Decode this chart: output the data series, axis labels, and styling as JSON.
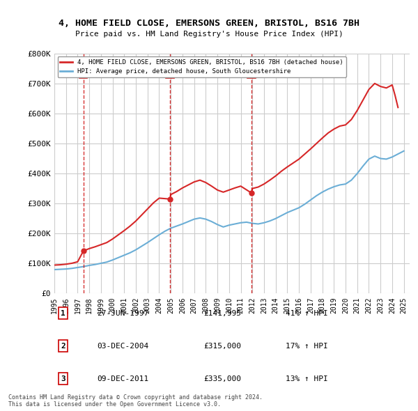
{
  "title1": "4, HOME FIELD CLOSE, EMERSONS GREEN, BRISTOL, BS16 7BH",
  "title2": "Price paid vs. HM Land Registry's House Price Index (HPI)",
  "legend1": "4, HOME FIELD CLOSE, EMERSONS GREEN, BRISTOL, BS16 7BH (detached house)",
  "legend2": "HPI: Average price, detached house, South Gloucestershire",
  "ylabel_ticks": [
    "£0",
    "£100K",
    "£200K",
    "£300K",
    "£400K",
    "£500K",
    "£600K",
    "£700K",
    "£800K"
  ],
  "ytick_vals": [
    0,
    100000,
    200000,
    300000,
    400000,
    500000,
    600000,
    700000,
    800000
  ],
  "ylim": [
    0,
    800000
  ],
  "xlim_start": 1995.0,
  "xlim_end": 2025.5,
  "footnote1": "Contains HM Land Registry data © Crown copyright and database right 2024.",
  "footnote2": "This data is licensed under the Open Government Licence v3.0.",
  "purchases": [
    {
      "num": 1,
      "date": "27-JUN-1997",
      "price": 141995,
      "pct": "41%",
      "direction": "↑",
      "year": 1997.49
    },
    {
      "num": 2,
      "date": "03-DEC-2004",
      "price": 315000,
      "pct": "17%",
      "direction": "↑",
      "year": 2004.92
    },
    {
      "num": 3,
      "date": "09-DEC-2011",
      "price": 335000,
      "pct": "13%",
      "direction": "↑",
      "year": 2011.93
    }
  ],
  "hpi_color": "#6baed6",
  "price_color": "#d62728",
  "marker_box_color": "#cc0000",
  "dashed_line_color": "#cc0000",
  "background_color": "#ffffff",
  "grid_color": "#cccccc",
  "hpi_years": [
    1995,
    1995.5,
    1996,
    1996.5,
    1997,
    1997.5,
    1998,
    1998.5,
    1999,
    1999.5,
    2000,
    2000.5,
    2001,
    2001.5,
    2002,
    2002.5,
    2003,
    2003.5,
    2004,
    2004.5,
    2005,
    2005.5,
    2006,
    2006.5,
    2007,
    2007.5,
    2008,
    2008.5,
    2009,
    2009.5,
    2010,
    2010.5,
    2011,
    2011.5,
    2012,
    2012.5,
    2013,
    2013.5,
    2014,
    2014.5,
    2015,
    2015.5,
    2016,
    2016.5,
    2017,
    2017.5,
    2018,
    2018.5,
    2019,
    2019.5,
    2020,
    2020.5,
    2021,
    2021.5,
    2022,
    2022.5,
    2023,
    2023.5,
    2024,
    2024.5,
    2025
  ],
  "hpi_values": [
    80000,
    81000,
    82000,
    84000,
    87000,
    90000,
    94000,
    97000,
    101000,
    105000,
    112000,
    120000,
    128000,
    136000,
    146000,
    158000,
    170000,
    183000,
    196000,
    208000,
    218000,
    225000,
    232000,
    240000,
    248000,
    252000,
    248000,
    240000,
    230000,
    222000,
    228000,
    232000,
    236000,
    238000,
    234000,
    232000,
    236000,
    242000,
    250000,
    260000,
    270000,
    278000,
    286000,
    298000,
    312000,
    326000,
    338000,
    348000,
    356000,
    362000,
    365000,
    378000,
    400000,
    425000,
    448000,
    458000,
    450000,
    448000,
    455000,
    465000,
    475000
  ],
  "price_years": [
    1995,
    1995.5,
    1996,
    1996.5,
    1997,
    1997.49,
    1998,
    1998.5,
    1999,
    1999.5,
    2000,
    2000.5,
    2001,
    2001.5,
    2002,
    2002.5,
    2003,
    2003.5,
    2004,
    2004.92,
    2005,
    2005.5,
    2006,
    2006.5,
    2007,
    2007.5,
    2008,
    2008.5,
    2009,
    2009.5,
    2010,
    2010.5,
    2011,
    2011.93,
    2012,
    2012.5,
    2013,
    2013.5,
    2014,
    2014.5,
    2015,
    2015.5,
    2016,
    2016.5,
    2017,
    2017.5,
    2018,
    2018.5,
    2019,
    2019.5,
    2020,
    2020.5,
    2021,
    2021.5,
    2022,
    2022.5,
    2023,
    2023.5,
    2024,
    2024.25,
    2024.5
  ],
  "price_values": [
    95000,
    96000,
    98000,
    101000,
    106000,
    141995,
    150000,
    156000,
    163000,
    170000,
    182000,
    196000,
    210000,
    225000,
    242000,
    262000,
    282000,
    302000,
    318000,
    315000,
    330000,
    340000,
    352000,
    362000,
    372000,
    378000,
    370000,
    358000,
    345000,
    338000,
    345000,
    352000,
    358000,
    335000,
    350000,
    355000,
    365000,
    378000,
    392000,
    408000,
    422000,
    435000,
    448000,
    465000,
    482000,
    500000,
    518000,
    535000,
    548000,
    558000,
    562000,
    580000,
    610000,
    645000,
    680000,
    700000,
    690000,
    685000,
    695000,
    660000,
    620000
  ],
  "xtick_years": [
    1995,
    1996,
    1997,
    1998,
    1999,
    2000,
    2001,
    2002,
    2003,
    2004,
    2005,
    2006,
    2007,
    2008,
    2009,
    2010,
    2011,
    2012,
    2013,
    2014,
    2015,
    2016,
    2017,
    2018,
    2019,
    2020,
    2021,
    2022,
    2023,
    2024,
    2025
  ]
}
